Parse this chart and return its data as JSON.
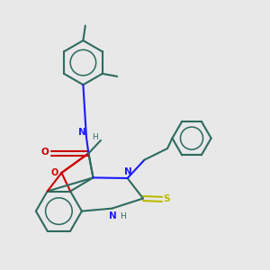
{
  "bg_color": "#e8e8e8",
  "bond_color": "#2d6b5e",
  "n_color": "#1a1aff",
  "o_color": "#cc0000",
  "s_color": "#bbbb00",
  "lw": 1.5,
  "figsize": [
    3.0,
    3.0
  ],
  "dpi": 100,
  "xlim": [
    0,
    10
  ],
  "ylim": [
    0,
    10
  ]
}
